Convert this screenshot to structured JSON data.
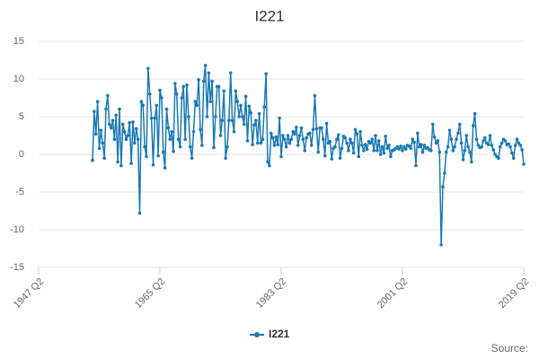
{
  "chart_data": {
    "type": "line",
    "title": "I221",
    "categories": [
      "1947 Q2",
      null,
      null,
      null,
      null,
      null,
      null,
      null,
      null,
      null,
      null,
      null,
      null,
      null,
      null,
      null,
      null,
      null,
      null,
      null,
      null,
      null,
      null,
      null,
      null,
      null,
      null,
      null,
      null,
      null,
      null,
      null,
      null,
      null,
      null,
      null,
      null,
      null,
      null,
      null,
      null,
      null,
      null,
      null,
      null,
      null,
      null,
      null,
      null,
      null,
      null,
      null,
      null,
      null,
      null,
      null,
      null,
      null,
      null,
      null,
      null,
      null,
      null,
      null,
      null,
      null,
      null,
      null,
      null,
      null,
      null,
      null,
      "1965 Q2",
      null,
      null,
      null,
      null,
      null,
      null,
      null,
      null,
      null,
      null,
      null,
      null,
      null,
      null,
      null,
      null,
      null,
      null,
      null,
      null,
      null,
      null,
      null,
      null,
      null,
      null,
      null,
      null,
      null,
      null,
      null,
      null,
      null,
      null,
      null,
      null,
      null,
      null,
      null,
      null,
      null,
      null,
      null,
      null,
      null,
      null,
      null,
      null,
      null,
      null,
      null,
      null,
      null,
      null,
      null,
      null,
      null,
      null,
      null,
      null,
      null,
      null,
      null,
      null,
      null,
      null,
      null,
      null,
      null,
      null,
      null,
      "1983 Q2",
      null,
      null,
      null,
      null,
      null,
      null,
      null,
      null,
      null,
      null,
      null,
      null,
      null,
      null,
      null,
      null,
      null,
      null,
      null,
      null,
      null,
      null,
      null,
      null,
      null,
      null,
      null,
      null,
      null,
      null,
      null,
      null,
      null,
      null,
      null,
      null,
      null,
      null,
      null,
      null,
      null,
      null,
      null,
      null,
      null,
      null,
      null,
      null,
      null,
      null,
      null,
      null,
      null,
      null,
      null,
      null,
      null,
      null,
      null,
      null,
      null,
      null,
      null,
      null,
      null,
      null,
      null,
      null,
      null,
      null,
      null,
      "2001 Q2",
      null,
      null,
      null,
      null,
      null,
      null,
      null,
      null,
      null,
      null,
      null,
      null,
      null,
      null,
      null,
      null,
      null,
      null,
      null,
      null,
      null,
      null,
      null,
      null,
      null,
      null,
      null,
      null,
      null,
      null,
      null,
      null,
      null,
      null,
      null,
      null,
      null,
      null,
      null,
      null,
      null,
      null,
      null,
      null,
      null,
      null,
      null,
      null,
      null,
      null,
      null,
      null,
      null,
      null,
      null,
      null,
      null,
      null,
      null,
      null,
      null,
      null,
      null,
      null,
      null,
      null,
      null,
      null,
      null,
      null,
      null,
      "2019 Q2"
    ],
    "series": [
      {
        "name": "I221",
        "color": "#1a7ab5",
        "values": [
          null,
          null,
          null,
          null,
          null,
          null,
          null,
          null,
          null,
          null,
          null,
          null,
          null,
          null,
          null,
          null,
          null,
          null,
          null,
          null,
          null,
          null,
          null,
          null,
          null,
          null,
          null,
          null,
          null,
          null,
          null,
          null,
          -0.8,
          5.7,
          2.7,
          7.0,
          0.8,
          3.2,
          1.5,
          -0.5,
          6.0,
          7.8,
          4.0,
          3.5,
          4.5,
          2.0,
          5.2,
          -1.0,
          6.0,
          -1.5,
          4.0,
          3.0,
          2.0,
          2.5,
          4.2,
          -1.2,
          4.3,
          1.5,
          3.4,
          2.0,
          -7.8,
          7.0,
          6.5,
          1.0,
          -0.3,
          11.4,
          8.0,
          4.8,
          -1.4,
          4.8,
          6.5,
          -0.2,
          8.5,
          7.5,
          0.3,
          -1.8,
          6.0,
          3.5,
          2.0,
          3.0,
          0.4,
          9.4,
          8.0,
          2.0,
          1.0,
          7.5,
          9.0,
          2.0,
          9.2,
          5.0,
          1.0,
          -0.5,
          3.0,
          7.0,
          6.5,
          9.9,
          3.3,
          1.2,
          9.7,
          11.8,
          5.0,
          10.8,
          7.0,
          9.7,
          0.9,
          5.0,
          9.0,
          9.0,
          2.5,
          4.5,
          8.4,
          -0.5,
          1.0,
          4.5,
          10.8,
          4.5,
          3.0,
          8.4,
          7.0,
          5.0,
          6.5,
          5.0,
          4.0,
          7.7,
          1.8,
          6.4,
          5.5,
          1.3,
          3.9,
          4.5,
          1.5,
          5.4,
          1.5,
          2.0,
          6.3,
          10.7,
          -1.0,
          -1.5,
          2.8,
          2.2,
          1.2,
          2.3,
          1.3,
          4.8,
          -0.3,
          2.5,
          2.0,
          1.0,
          2.5,
          1.5,
          2.0,
          3.0,
          2.7,
          3.6,
          1.2,
          2.5,
          3.5,
          2.0,
          0.5,
          2.2,
          2.7,
          2.8,
          1.2,
          3.3,
          7.8,
          3.4,
          0.3,
          3.5,
          3.5,
          2.0,
          -0.2,
          4.1,
          1.5,
          1.7,
          -0.6,
          0.8,
          1.0,
          2.0,
          2.6,
          -0.5,
          0.8,
          2.4,
          2.2,
          1.5,
          0.5,
          2.0,
          1.5,
          0.2,
          3.3,
          2.7,
          -0.3,
          3.0,
          1.2,
          0.5,
          1.3,
          0.7,
          1.7,
          1.5,
          2.0,
          0.5,
          2.5,
          0.5,
          1.8,
          0.0,
          1.0,
          0.2,
          2.4,
          0.8,
          1.2,
          -0.3,
          0.5,
          0.6,
          0.8,
          1.0,
          0.7,
          1.1,
          0.5,
          1.0,
          0.7,
          1.2,
          1.1,
          0.8,
          2.0,
          1.6,
          -1.5,
          2.8,
          1.0,
          1.3,
          0.3,
          1.2,
          0.8,
          0.9,
          0.6,
          0.5,
          4.0,
          2.3,
          1.5,
          1.8,
          0.3,
          -12.0,
          -4.3,
          -2.5,
          0.3,
          1.0,
          3.2,
          2.0,
          0.5,
          1.0,
          2.0,
          2.8,
          4.0,
          1.5,
          -0.7,
          0.5,
          2.5,
          1.0,
          0.3,
          -1.0,
          3.8,
          5.4,
          2.0,
          1.2,
          0.9,
          1.0,
          1.8,
          2.2,
          1.5,
          1.3,
          2.5,
          1.2,
          0.6,
          0.0,
          -0.3,
          -0.5,
          1.0,
          1.5,
          2.0,
          1.8,
          1.3,
          1.4,
          1.0,
          0.2,
          -0.5,
          1.2,
          2.0,
          1.5,
          1.2,
          0.6,
          -1.3
        ]
      }
    ],
    "ylim": [
      -15,
      15
    ],
    "yticks": [
      -15,
      -10,
      -5,
      0,
      5,
      10,
      15
    ],
    "grid": true,
    "legend": "bottom",
    "source_note": "Source:"
  }
}
